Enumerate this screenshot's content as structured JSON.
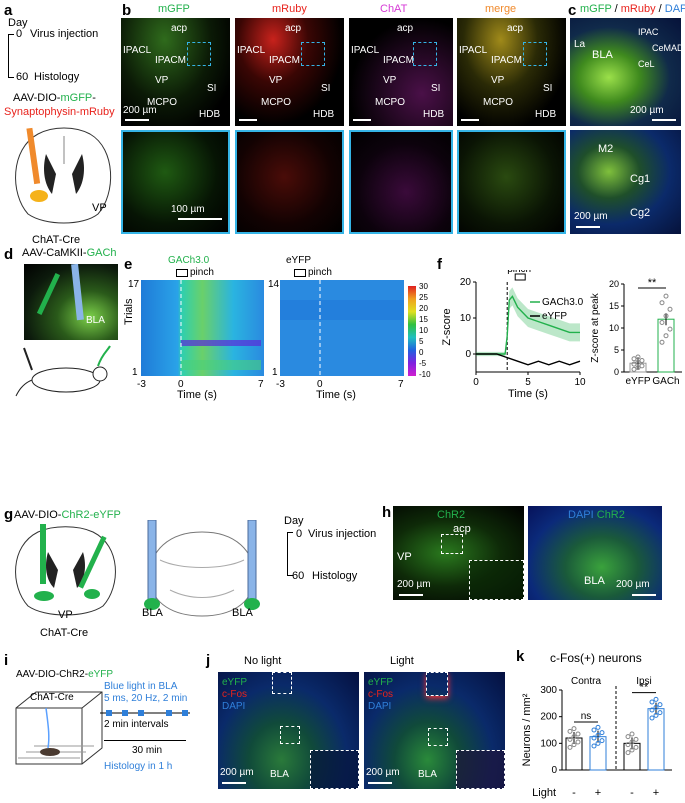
{
  "panels": {
    "a": {
      "letter": "a",
      "day": "Day",
      "t0": "0",
      "t0_label": "Virus injection",
      "t60": "60",
      "t60_label": "Histology",
      "virus_prefix": "AAV-DIO-",
      "virus_mgfp": "mGFP",
      "virus_dash": "-",
      "virus_syn": "Synaptophysin-mRuby",
      "region": "VP",
      "mouse": "ChAT-Cre"
    },
    "b": {
      "letter": "b",
      "channels": [
        "mGFP",
        "mRuby",
        "ChAT",
        "merge"
      ],
      "regions": {
        "acp": "acp",
        "ipacl": "IPACL",
        "ipacm": "IPACM",
        "vp": "VP",
        "si": "SI",
        "mcpo": "MCPO",
        "hdb": "HDB"
      },
      "scale_top": "200 µm",
      "scale_bottom": "100 µm"
    },
    "c": {
      "letter": "c",
      "title_mgfp": "mGFP",
      "title_sep1": " / ",
      "title_mruby": "mRuby",
      "title_sep2": " / ",
      "title_dapi": "DAPI",
      "regions": {
        "la": "La",
        "bla": "BLA",
        "ipac": "IPAC",
        "cemad": "CeMAD",
        "cel": "CeL",
        "m2": "M2",
        "cg1": "Cg1",
        "cg2": "Cg2"
      },
      "scale1": "200 µm",
      "scale2": "200 µm"
    },
    "d": {
      "letter": "d",
      "virus_prefix": "AAV-CaMKII-",
      "virus_gach": "GACh",
      "region": "BLA"
    },
    "e": {
      "letter": "e",
      "left_title": "GACh3.0",
      "right_title": "eYFP",
      "pinch": "pinch",
      "ylabel": "Trials",
      "xlabel": "Time (s)",
      "left_trials_top": "17",
      "right_trials_top": "14",
      "trials_bottom": "1",
      "xticks": [
        "-3",
        "0",
        "7"
      ],
      "colorbar": [
        "30",
        "25",
        "20",
        "15",
        "10",
        "5",
        "0",
        "-5",
        "-10"
      ]
    },
    "f": {
      "letter": "f",
      "pinch": "pinch",
      "ylabel": "Z-score",
      "xlabel": "Time (s)",
      "legend": [
        "GACh3.0",
        "eYFP"
      ],
      "yticks": [
        "20",
        "10",
        "0"
      ],
      "xticks": [
        "0",
        "5",
        "10"
      ],
      "bar_ylabel": "Z-score at peak",
      "bar_yticks": [
        "20",
        "15",
        "10",
        "5",
        "0"
      ],
      "bar_cats": [
        "eYFP",
        "GACh"
      ],
      "sig": "**"
    },
    "g": {
      "letter": "g",
      "virus_prefix": "AAV-DIO-",
      "virus_chr2": "ChR2-eYFP",
      "region": "VP",
      "region2": "BLA",
      "region3": "BLA",
      "mouse": "ChAT-Cre",
      "day": "Day",
      "t0": "0",
      "t0_label": "Virus injection",
      "t60": "60",
      "t60_label": "Histology"
    },
    "h": {
      "letter": "h",
      "title_left": "ChR2",
      "acp": "acp",
      "vp": "VP",
      "scale_left": "200 µm",
      "title_right_dapi": "DAPI",
      "title_right_chr2": " ChR2",
      "bla": "BLA",
      "scale_right": "200 µm"
    },
    "i": {
      "letter": "i",
      "virus_prefix": "AAV-DIO-ChR2-",
      "virus_eyfp": "eYFP",
      "mouse": "ChAT-Cre",
      "protocol": [
        "Blue light in BLA",
        "5 ms, 20 Hz, 2 min"
      ],
      "intervals": "2 min intervals",
      "duration": "30 min",
      "histology": "Histology in 1 h"
    },
    "j": {
      "letter": "j",
      "title_left": "No light",
      "title_right": "Light",
      "legend": [
        "eYFP",
        "c-Fos",
        "DAPI"
      ],
      "bla": "BLA",
      "scale": "200 µm"
    },
    "k": {
      "letter": "k",
      "title": "c-Fos(+) neurons",
      "contra": "Contra",
      "ipsi": "Ipsi",
      "ylabel": "Neurons / mm²",
      "yticks": [
        "300",
        "200",
        "100",
        "0"
      ],
      "ns": "ns",
      "sig": "**",
      "light": "Light",
      "minus": "-",
      "plus": "+"
    }
  },
  "chart_data": [
    {
      "type": "line",
      "panel": "f-trace",
      "xlabel": "Time (s)",
      "ylabel": "Z-score",
      "xlim": [
        0,
        10
      ],
      "ylim": [
        -5,
        20
      ],
      "series": [
        {
          "name": "GACh3.0",
          "x": [
            0,
            1,
            2,
            2.8,
            3.0,
            3.2,
            3.5,
            4,
            5,
            6,
            7,
            8,
            9,
            10
          ],
          "y": [
            0,
            0,
            0,
            0,
            5,
            15,
            16,
            13,
            10,
            9,
            8,
            7,
            6,
            6
          ]
        },
        {
          "name": "eYFP",
          "x": [
            0,
            1,
            2,
            3,
            4,
            5,
            6,
            7,
            8,
            9,
            10
          ],
          "y": [
            0,
            0,
            0,
            -1,
            -2,
            -3,
            -2,
            -3,
            -2,
            -3,
            -2
          ]
        }
      ]
    },
    {
      "type": "bar",
      "panel": "f-bar",
      "ylabel": "Z-score at peak",
      "categories": [
        "eYFP",
        "GACh"
      ],
      "values": [
        2,
        12
      ],
      "ylim": [
        0,
        20
      ]
    },
    {
      "type": "bar",
      "panel": "k",
      "ylabel": "Neurons / mm²",
      "categories": [
        "Contra -",
        "Contra +",
        "Ipsi -",
        "Ipsi +"
      ],
      "values": [
        120,
        125,
        100,
        230
      ],
      "ylim": [
        0,
        300
      ]
    }
  ],
  "colors": {
    "green": "#22b14c",
    "red": "#e8231d",
    "magenta": "#d63bd6",
    "cyan_box": "#35b4e6",
    "blue": "#2f7fd9"
  }
}
